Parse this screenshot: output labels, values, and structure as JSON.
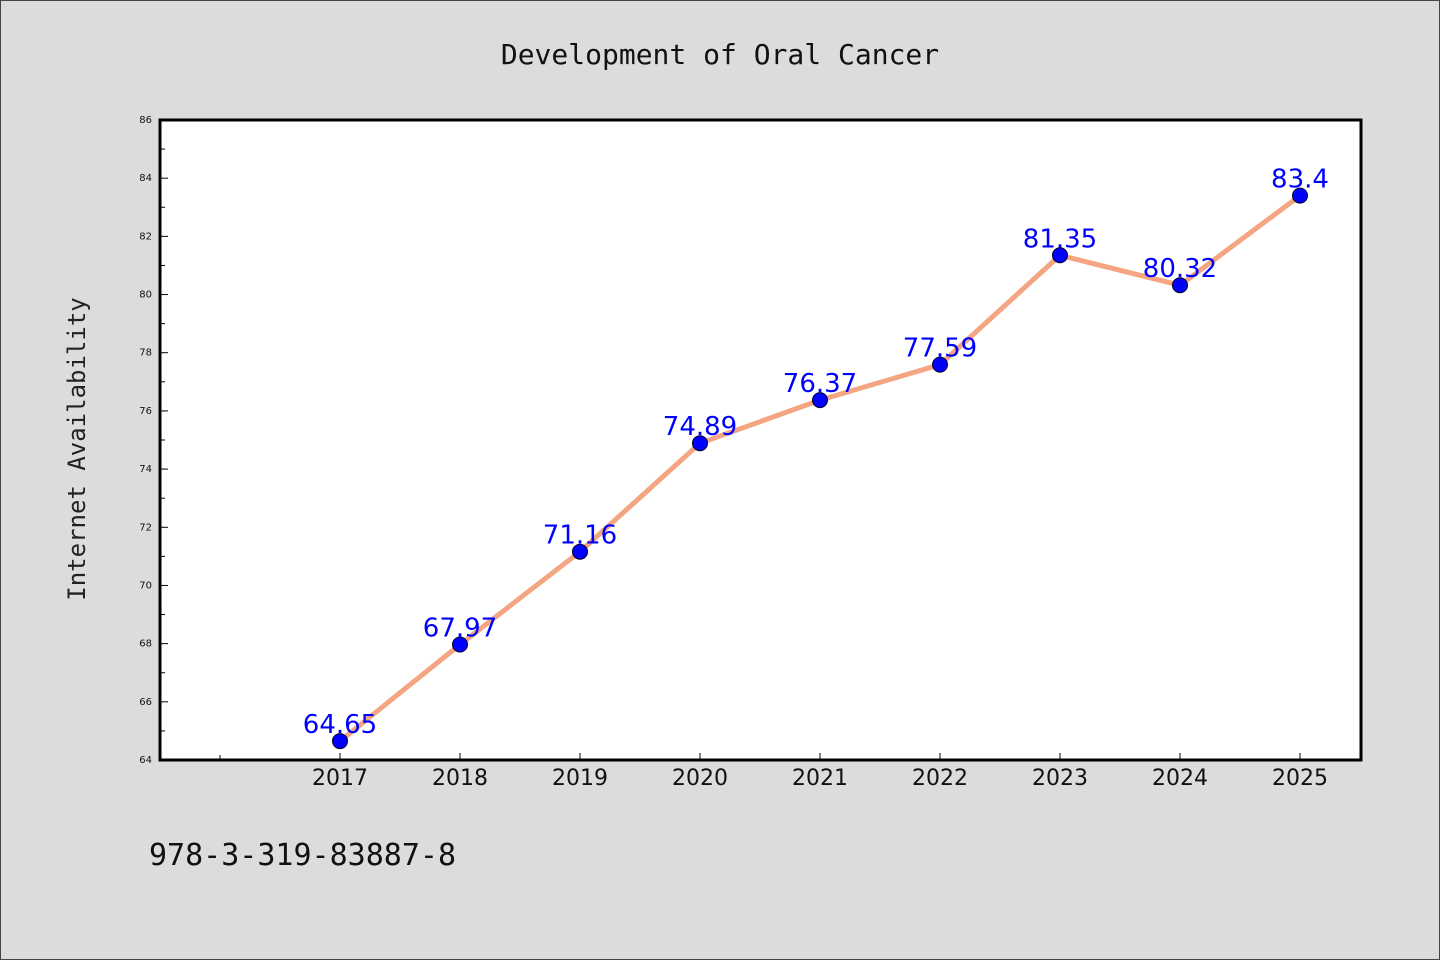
{
  "chart_data": {
    "type": "line",
    "title": "Development of Oral Cancer",
    "xlabel": "",
    "ylabel": "Internet Availability",
    "categories": [
      "2017",
      "2018",
      "2019",
      "2020",
      "2021",
      "2022",
      "2023",
      "2024",
      "2025"
    ],
    "series": [
      {
        "values": [
          64.65,
          67.97,
          71.16,
          74.89,
          76.37,
          77.59,
          81.35,
          80.32,
          83.4
        ],
        "data_labels": [
          "64.65",
          "67.97",
          "71.16",
          "74.89",
          "76.37",
          "77.59",
          "81.35",
          "80.32",
          "83.4"
        ],
        "line_color": "#f4a582",
        "marker_color": "#0000ff"
      }
    ],
    "ylim": [
      64,
      86
    ],
    "yticks": [
      "64",
      "66",
      "68",
      "70",
      "72",
      "74",
      "76",
      "78",
      "80",
      "82",
      "84",
      "86"
    ],
    "grid": false,
    "legend": "none"
  },
  "footer": {
    "isbn": "978-3-319-83887-8"
  }
}
